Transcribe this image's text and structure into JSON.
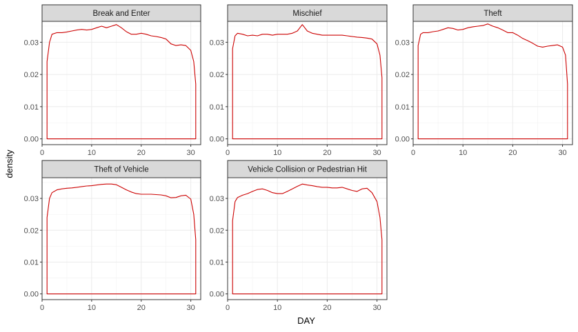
{
  "chart_data": {
    "type": "area",
    "xlabel": "DAY",
    "ylabel": "density",
    "xlim": [
      0,
      32
    ],
    "ylim": [
      -0.0018,
      0.0365
    ],
    "xticks": [
      0,
      10,
      20,
      30
    ],
    "xtick_labels": [
      "0",
      "10",
      "20",
      "30"
    ],
    "yticks": [
      0.0,
      0.01,
      0.02,
      0.03
    ],
    "ytick_labels": [
      "0.00",
      "0.01",
      "0.02",
      "0.03"
    ],
    "grid": true,
    "line_color": "#cc0000",
    "panels": [
      {
        "title": "Break and Enter",
        "points": [
          [
            1,
            0.024
          ],
          [
            1.5,
            0.03
          ],
          [
            2,
            0.0325
          ],
          [
            3,
            0.033
          ],
          [
            4,
            0.033
          ],
          [
            5,
            0.0332
          ],
          [
            6,
            0.0335
          ],
          [
            7,
            0.0338
          ],
          [
            8,
            0.034
          ],
          [
            9,
            0.0338
          ],
          [
            10,
            0.034
          ],
          [
            11,
            0.0345
          ],
          [
            12,
            0.035
          ],
          [
            13,
            0.0345
          ],
          [
            14,
            0.035
          ],
          [
            15,
            0.0355
          ],
          [
            16,
            0.0345
          ],
          [
            17,
            0.0333
          ],
          [
            18,
            0.0325
          ],
          [
            19,
            0.0325
          ],
          [
            20,
            0.0328
          ],
          [
            21,
            0.0325
          ],
          [
            22,
            0.032
          ],
          [
            23,
            0.0318
          ],
          [
            24,
            0.0315
          ],
          [
            25,
            0.031
          ],
          [
            26,
            0.0295
          ],
          [
            27,
            0.029
          ],
          [
            28,
            0.0292
          ],
          [
            29,
            0.029
          ],
          [
            30,
            0.0275
          ],
          [
            30.6,
            0.024
          ],
          [
            31,
            0.017
          ]
        ]
      },
      {
        "title": "Mischief",
        "points": [
          [
            1,
            0.028
          ],
          [
            1.5,
            0.032
          ],
          [
            2,
            0.0328
          ],
          [
            3,
            0.0325
          ],
          [
            4,
            0.032
          ],
          [
            5,
            0.0322
          ],
          [
            6,
            0.032
          ],
          [
            7,
            0.0325
          ],
          [
            8,
            0.0325
          ],
          [
            9,
            0.0322
          ],
          [
            10,
            0.0325
          ],
          [
            11,
            0.0325
          ],
          [
            12,
            0.0325
          ],
          [
            13,
            0.0328
          ],
          [
            14,
            0.0335
          ],
          [
            15,
            0.0355
          ],
          [
            16,
            0.0335
          ],
          [
            17,
            0.0328
          ],
          [
            18,
            0.0325
          ],
          [
            19,
            0.0322
          ],
          [
            20,
            0.0322
          ],
          [
            21,
            0.0322
          ],
          [
            22,
            0.0322
          ],
          [
            23,
            0.0322
          ],
          [
            24,
            0.032
          ],
          [
            25,
            0.0318
          ],
          [
            26,
            0.0316
          ],
          [
            27,
            0.0315
          ],
          [
            28,
            0.0313
          ],
          [
            29,
            0.031
          ],
          [
            30,
            0.0295
          ],
          [
            30.6,
            0.026
          ],
          [
            31,
            0.019
          ]
        ]
      },
      {
        "title": "Theft",
        "points": [
          [
            1,
            0.029
          ],
          [
            1.5,
            0.0325
          ],
          [
            2,
            0.033
          ],
          [
            3,
            0.033
          ],
          [
            4,
            0.0333
          ],
          [
            5,
            0.0335
          ],
          [
            6,
            0.034
          ],
          [
            7,
            0.0345
          ],
          [
            8,
            0.0343
          ],
          [
            9,
            0.0338
          ],
          [
            10,
            0.034
          ],
          [
            11,
            0.0345
          ],
          [
            12,
            0.0348
          ],
          [
            13,
            0.035
          ],
          [
            14,
            0.0352
          ],
          [
            15,
            0.0357
          ],
          [
            16,
            0.035
          ],
          [
            17,
            0.0345
          ],
          [
            18,
            0.0338
          ],
          [
            19,
            0.033
          ],
          [
            20,
            0.033
          ],
          [
            21,
            0.0322
          ],
          [
            22,
            0.0312
          ],
          [
            23,
            0.0305
          ],
          [
            24,
            0.0297
          ],
          [
            25,
            0.0288
          ],
          [
            26,
            0.0285
          ],
          [
            27,
            0.0288
          ],
          [
            28,
            0.029
          ],
          [
            29,
            0.0292
          ],
          [
            30,
            0.0285
          ],
          [
            30.6,
            0.026
          ],
          [
            31,
            0.017
          ]
        ]
      },
      {
        "title": "Theft of Vehicle",
        "points": [
          [
            1,
            0.024
          ],
          [
            1.5,
            0.03
          ],
          [
            2,
            0.0318
          ],
          [
            3,
            0.0327
          ],
          [
            4,
            0.033
          ],
          [
            5,
            0.0332
          ],
          [
            6,
            0.0333
          ],
          [
            7,
            0.0335
          ],
          [
            8,
            0.0337
          ],
          [
            9,
            0.0339
          ],
          [
            10,
            0.034
          ],
          [
            11,
            0.0342
          ],
          [
            12,
            0.0344
          ],
          [
            13,
            0.0345
          ],
          [
            14,
            0.0345
          ],
          [
            15,
            0.0343
          ],
          [
            16,
            0.0335
          ],
          [
            17,
            0.0327
          ],
          [
            18,
            0.032
          ],
          [
            19,
            0.0315
          ],
          [
            20,
            0.0313
          ],
          [
            21,
            0.0313
          ],
          [
            22,
            0.0313
          ],
          [
            23,
            0.0312
          ],
          [
            24,
            0.0311
          ],
          [
            25,
            0.0308
          ],
          [
            26,
            0.0302
          ],
          [
            27,
            0.0303
          ],
          [
            28,
            0.0308
          ],
          [
            29,
            0.031
          ],
          [
            30,
            0.0298
          ],
          [
            30.6,
            0.025
          ],
          [
            31,
            0.017
          ]
        ]
      },
      {
        "title": "Vehicle Collision or Pedestrian Hit",
        "points": [
          [
            1,
            0.023
          ],
          [
            1.5,
            0.029
          ],
          [
            2,
            0.0303
          ],
          [
            3,
            0.031
          ],
          [
            4,
            0.0315
          ],
          [
            5,
            0.0322
          ],
          [
            6,
            0.0328
          ],
          [
            7,
            0.033
          ],
          [
            8,
            0.0325
          ],
          [
            9,
            0.0318
          ],
          [
            10,
            0.0315
          ],
          [
            11,
            0.0315
          ],
          [
            12,
            0.0322
          ],
          [
            13,
            0.033
          ],
          [
            14,
            0.0338
          ],
          [
            15,
            0.0345
          ],
          [
            16,
            0.0342
          ],
          [
            17,
            0.034
          ],
          [
            18,
            0.0337
          ],
          [
            19,
            0.0335
          ],
          [
            20,
            0.0335
          ],
          [
            21,
            0.0333
          ],
          [
            22,
            0.0333
          ],
          [
            23,
            0.0335
          ],
          [
            24,
            0.033
          ],
          [
            25,
            0.0325
          ],
          [
            26,
            0.0322
          ],
          [
            27,
            0.033
          ],
          [
            28,
            0.0332
          ],
          [
            29,
            0.0318
          ],
          [
            30,
            0.029
          ],
          [
            30.6,
            0.024
          ],
          [
            31,
            0.017
          ]
        ]
      }
    ]
  }
}
